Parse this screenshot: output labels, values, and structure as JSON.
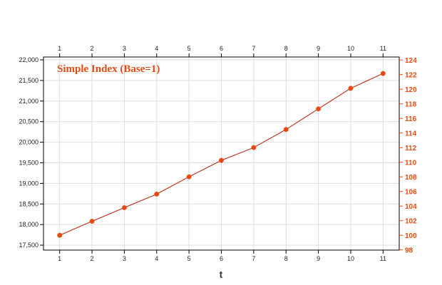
{
  "chart_data": {
    "type": "line",
    "title": "Simple Index (Base=1)",
    "xlabel": "t",
    "ylabel": "",
    "x": [
      1,
      2,
      3,
      4,
      5,
      6,
      7,
      8,
      9,
      10,
      11
    ],
    "series": [
      {
        "values": [
          17740,
          18080,
          18410,
          18740,
          19160,
          19560,
          19870,
          20310,
          20810,
          21310,
          21670
        ]
      }
    ],
    "xlim": [
      0.5,
      11.5
    ],
    "ylim": [
      17380,
      22070
    ],
    "y_ticks": [
      17500,
      18000,
      18500,
      19000,
      19500,
      20000,
      20500,
      21000,
      21500,
      22000
    ],
    "y_tick_labels": [
      "17,500",
      "18,000",
      "18,500",
      "19,000",
      "19,500",
      "20,000",
      "20,500",
      "21,000",
      "21,500",
      "22,000"
    ],
    "y2_ticks": [
      98,
      100,
      102,
      104,
      106,
      108,
      110,
      112,
      114,
      116,
      118,
      120,
      122,
      124
    ],
    "y2_base": 17740,
    "grid": true,
    "legend": "none"
  },
  "colors": {
    "line": "#c0392b",
    "marker": "#e8490f",
    "accent": "#e8490f",
    "grid": "#dddddd"
  }
}
